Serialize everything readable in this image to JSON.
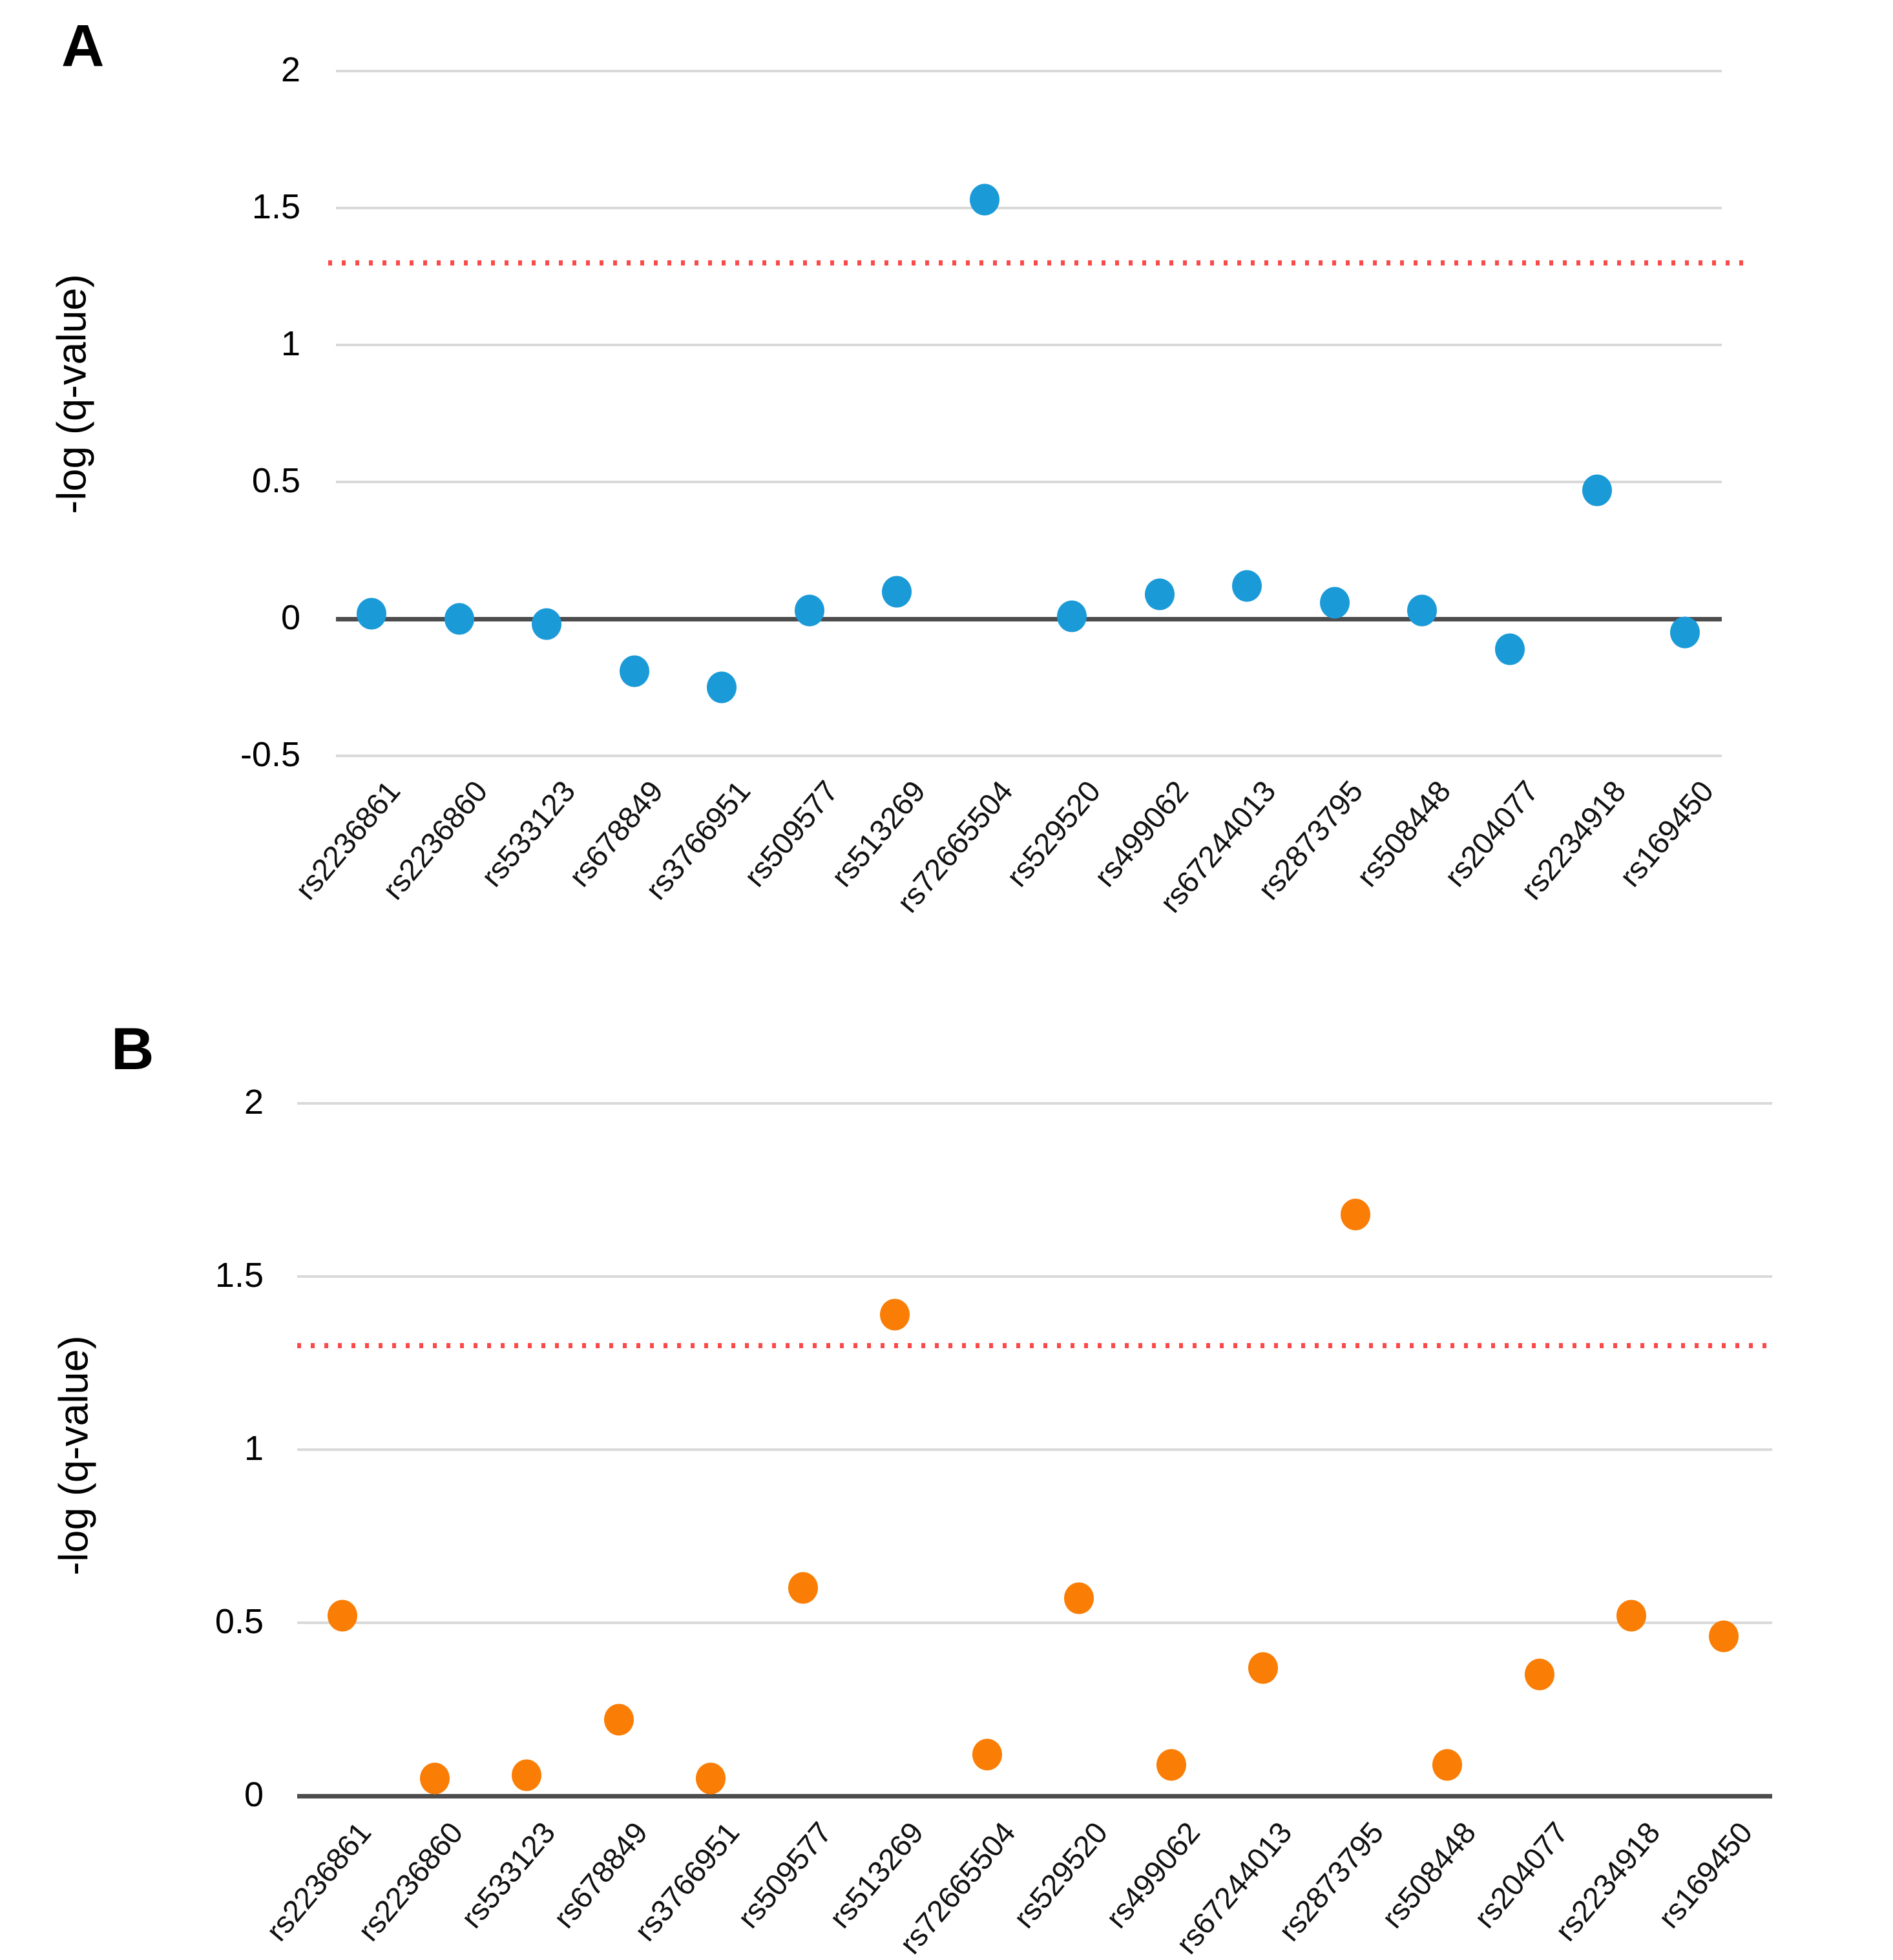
{
  "chart_data": [
    {
      "type": "scatter",
      "panel_label": "A",
      "ylabel": "-log (q-value)",
      "ylim": [
        -0.5,
        2
      ],
      "y_ticks": [
        2,
        1.5,
        1,
        0.5,
        0,
        -0.5
      ],
      "grid": true,
      "legend": "none",
      "threshold_line": {
        "value": 1.3,
        "color": "#fb4a4a",
        "style": "dotted"
      },
      "point_color": "#1b9ad8",
      "gridline_color": "#d9d9d9",
      "axis_color": "#4d4d4d",
      "categories": [
        "rs2236861",
        "rs2236860",
        "rs533123",
        "rs678849",
        "rs3766951",
        "rs509577",
        "rs513269",
        "rs72665504",
        "rs529520",
        "rs499062",
        "rs67244013",
        "rs2873795",
        "rs508448",
        "rs204077",
        "rs2234918",
        "rs169450"
      ],
      "values": [
        0.02,
        0.0,
        -0.02,
        -0.19,
        -0.25,
        0.03,
        0.1,
        1.53,
        0.01,
        0.09,
        0.12,
        0.06,
        0.03,
        -0.11,
        0.47,
        -0.05
      ]
    },
    {
      "type": "scatter",
      "panel_label": "B",
      "ylabel": "-log (q-value)",
      "ylim": [
        0,
        2
      ],
      "y_ticks": [
        2,
        1.5,
        1,
        0.5,
        0
      ],
      "grid": true,
      "legend": "none",
      "threshold_line": {
        "value": 1.3,
        "color": "#fb4a4a",
        "style": "dotted"
      },
      "point_color": "#fa7d05",
      "gridline_color": "#d9d9d9",
      "axis_color": "#4d4d4d",
      "categories": [
        "rs2236861",
        "rs2236860",
        "rs533123",
        "rs678849",
        "rs3766951",
        "rs509577",
        "rs513269",
        "rs72665504",
        "rs529520",
        "rs499062",
        "rs67244013",
        "rs2873795",
        "rs508448",
        "rs204077",
        "rs2234918",
        "rs169450"
      ],
      "values": [
        0.52,
        0.05,
        0.06,
        0.22,
        0.05,
        0.6,
        1.39,
        0.12,
        0.57,
        0.09,
        0.37,
        1.68,
        0.09,
        0.35,
        0.52,
        0.46
      ]
    }
  ]
}
